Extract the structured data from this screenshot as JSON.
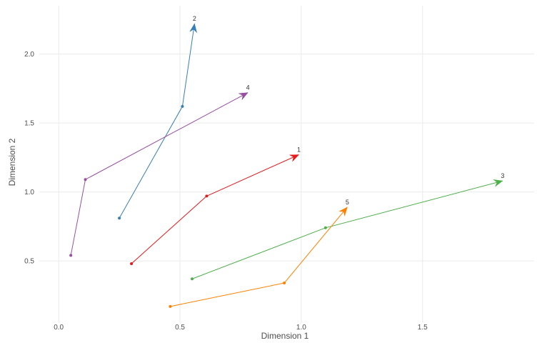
{
  "chart_data": {
    "type": "line",
    "xlabel": "Dimension 1",
    "ylabel": "Dimension 2",
    "xlim": [
      -0.08,
      1.96
    ],
    "ylim": [
      0.05,
      2.35
    ],
    "x_ticks": [
      0.0,
      0.5,
      1.0,
      1.5
    ],
    "x_tick_labels": [
      "0.0",
      "0.5",
      "1.0",
      "1.5"
    ],
    "y_ticks": [
      0.5,
      1.0,
      1.5,
      2.0
    ],
    "y_tick_labels": [
      "0.5",
      "1.0",
      "1.5",
      "2.0"
    ],
    "grid": true,
    "series": [
      {
        "name": "1",
        "color": "#e41a1c",
        "points": [
          [
            0.3,
            0.48
          ],
          [
            0.61,
            0.97
          ],
          [
            0.99,
            1.27
          ]
        ]
      },
      {
        "name": "2",
        "color": "#377eb8",
        "points": [
          [
            0.25,
            0.81
          ],
          [
            0.51,
            1.62
          ],
          [
            0.56,
            2.22
          ]
        ]
      },
      {
        "name": "3",
        "color": "#4daf4a",
        "points": [
          [
            0.55,
            0.37
          ],
          [
            1.1,
            0.74
          ],
          [
            1.83,
            1.08
          ]
        ]
      },
      {
        "name": "4",
        "color": "#984ea3",
        "points": [
          [
            0.05,
            0.54
          ],
          [
            0.11,
            1.09
          ],
          [
            0.78,
            1.72
          ]
        ]
      },
      {
        "name": "5",
        "color": "#ff7f00",
        "points": [
          [
            0.46,
            0.17
          ],
          [
            0.93,
            0.34
          ],
          [
            1.19,
            0.89
          ]
        ]
      }
    ]
  }
}
